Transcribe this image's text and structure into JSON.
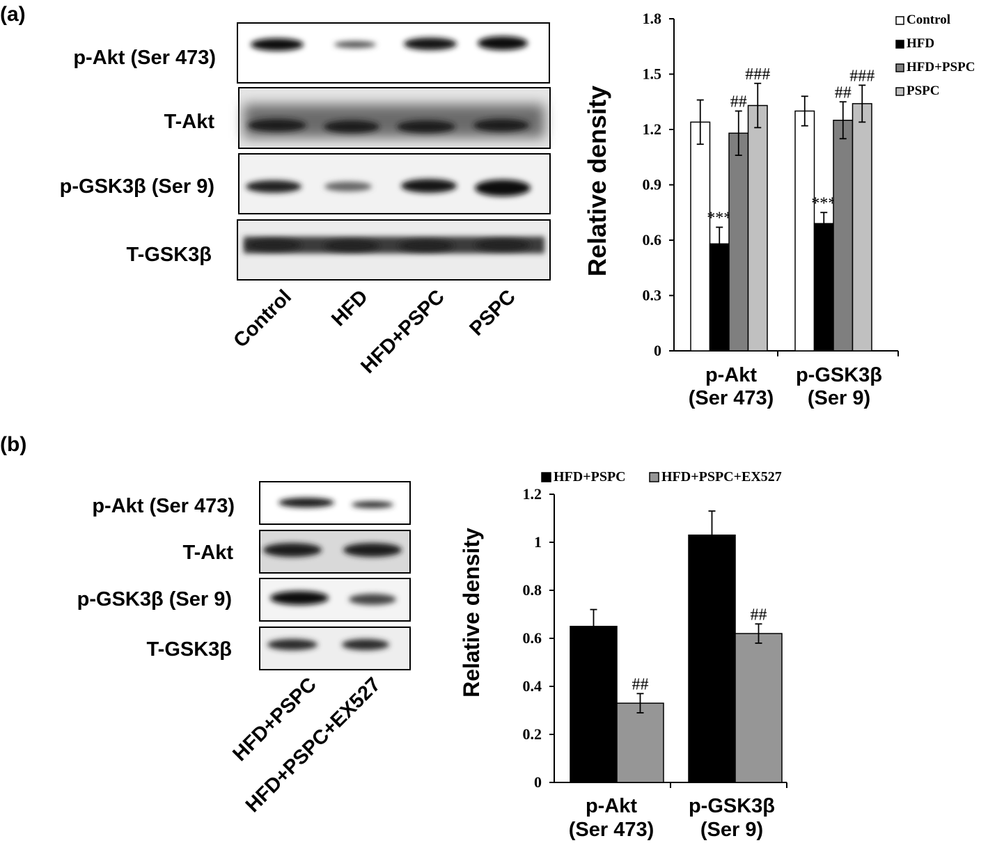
{
  "panels": {
    "a": {
      "label": "(a)",
      "blot": {
        "rows": [
          "p-Akt (Ser 473)",
          "T-Akt",
          "p-GSK3β (Ser 9)",
          "T-GSK3β"
        ],
        "lanes": [
          "Control",
          "HFD",
          "HFD+PSPC",
          "PSPC"
        ]
      }
    },
    "b": {
      "label": "(b)",
      "blot": {
        "rows": [
          "p-Akt (Ser 473)",
          "T-Akt",
          "p-GSK3β (Ser 9)",
          "T-GSK3β"
        ],
        "lanes": [
          "HFD+PSPC",
          "HFD+PSPC+EX527"
        ]
      }
    }
  },
  "chart_data": [
    {
      "type": "bar",
      "title": "",
      "xlabel": "",
      "ylabel": "Relative density",
      "ylim": [
        0,
        1.8
      ],
      "yticks": [
        "0",
        "0.3",
        "0.6",
        "0.9",
        "1.2",
        "1.5",
        "1.8"
      ],
      "categories": [
        "p-Akt (Ser 473)",
        "p-GSK3β (Ser 9)"
      ],
      "category_lines": [
        [
          "p-Akt",
          "(Ser 473)"
        ],
        [
          "p-GSK3β",
          "(Ser 9)"
        ]
      ],
      "legend_position": "top-right",
      "series": [
        {
          "name": "Control",
          "color": "#ffffff",
          "values": [
            1.24,
            1.3
          ],
          "errors": [
            0.12,
            0.08
          ],
          "annotations": [
            "",
            ""
          ]
        },
        {
          "name": "HFD",
          "color": "#000000",
          "values": [
            0.58,
            0.69
          ],
          "errors": [
            0.09,
            0.06
          ],
          "annotations": [
            "***",
            "***"
          ]
        },
        {
          "name": "HFD+PSPC",
          "color": "#7f7f7f",
          "values": [
            1.18,
            1.25
          ],
          "errors": [
            0.12,
            0.1
          ],
          "annotations": [
            "##",
            "##"
          ]
        },
        {
          "name": "PSPC",
          "color": "#c0c0c0",
          "values": [
            1.33,
            1.34
          ],
          "errors": [
            0.12,
            0.1
          ],
          "annotations": [
            "###",
            "###"
          ]
        }
      ]
    },
    {
      "type": "bar",
      "title": "",
      "xlabel": "",
      "ylabel": "Relative density",
      "ylim": [
        0,
        1.2
      ],
      "yticks": [
        "0",
        "0.2",
        "0.4",
        "0.6",
        "0.8",
        "1",
        "1.2"
      ],
      "categories": [
        "p-Akt (Ser 473)",
        "p-GSK3β (Ser 9)"
      ],
      "category_lines": [
        [
          "p-Akt",
          "(Ser 473)"
        ],
        [
          "p-GSK3β",
          "(Ser 9)"
        ]
      ],
      "legend_position": "top",
      "series": [
        {
          "name": "HFD+PSPC",
          "color": "#000000",
          "values": [
            0.65,
            1.03
          ],
          "errors": [
            0.07,
            0.1
          ],
          "annotations": [
            "",
            ""
          ]
        },
        {
          "name": "HFD+PSPC+EX527",
          "color": "#969696",
          "values": [
            0.33,
            0.62
          ],
          "errors": [
            0.04,
            0.04
          ],
          "annotations": [
            "##",
            "##"
          ]
        }
      ]
    }
  ]
}
